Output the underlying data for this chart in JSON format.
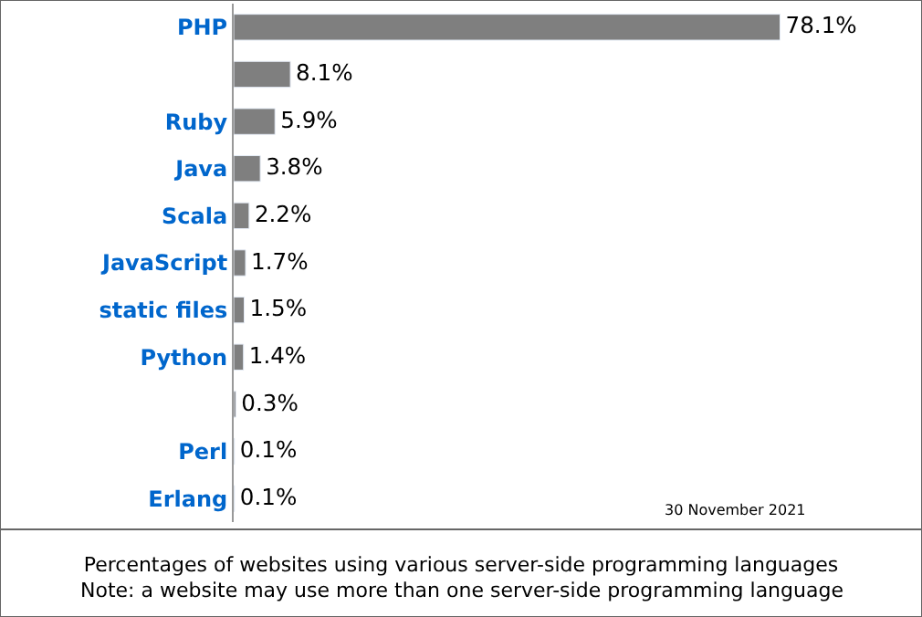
{
  "chart_data": {
    "type": "bar",
    "orientation": "horizontal",
    "title": "Percentages of websites using various server-side programming languages",
    "categories": [
      "PHP",
      null,
      "Ruby",
      "Java",
      "Scala",
      "JavaScript",
      "static files",
      "Python",
      null,
      "Perl",
      "Erlang"
    ],
    "values": [
      78.1,
      8.1,
      5.9,
      3.8,
      2.2,
      1.7,
      1.5,
      1.4,
      0.3,
      0.1,
      0.1
    ],
    "value_labels": [
      "78.1%",
      "8.1%",
      "5.9%",
      "3.8%",
      "2.2%",
      "1.7%",
      "1.5%",
      "1.4%",
      "0.3%",
      "0.1%",
      "0.1%"
    ],
    "color": "#7f7f7f",
    "legend": false,
    "annotations": [
      "30 November 2021",
      "Note: a website may use more than one server-side programming language"
    ]
  }
}
